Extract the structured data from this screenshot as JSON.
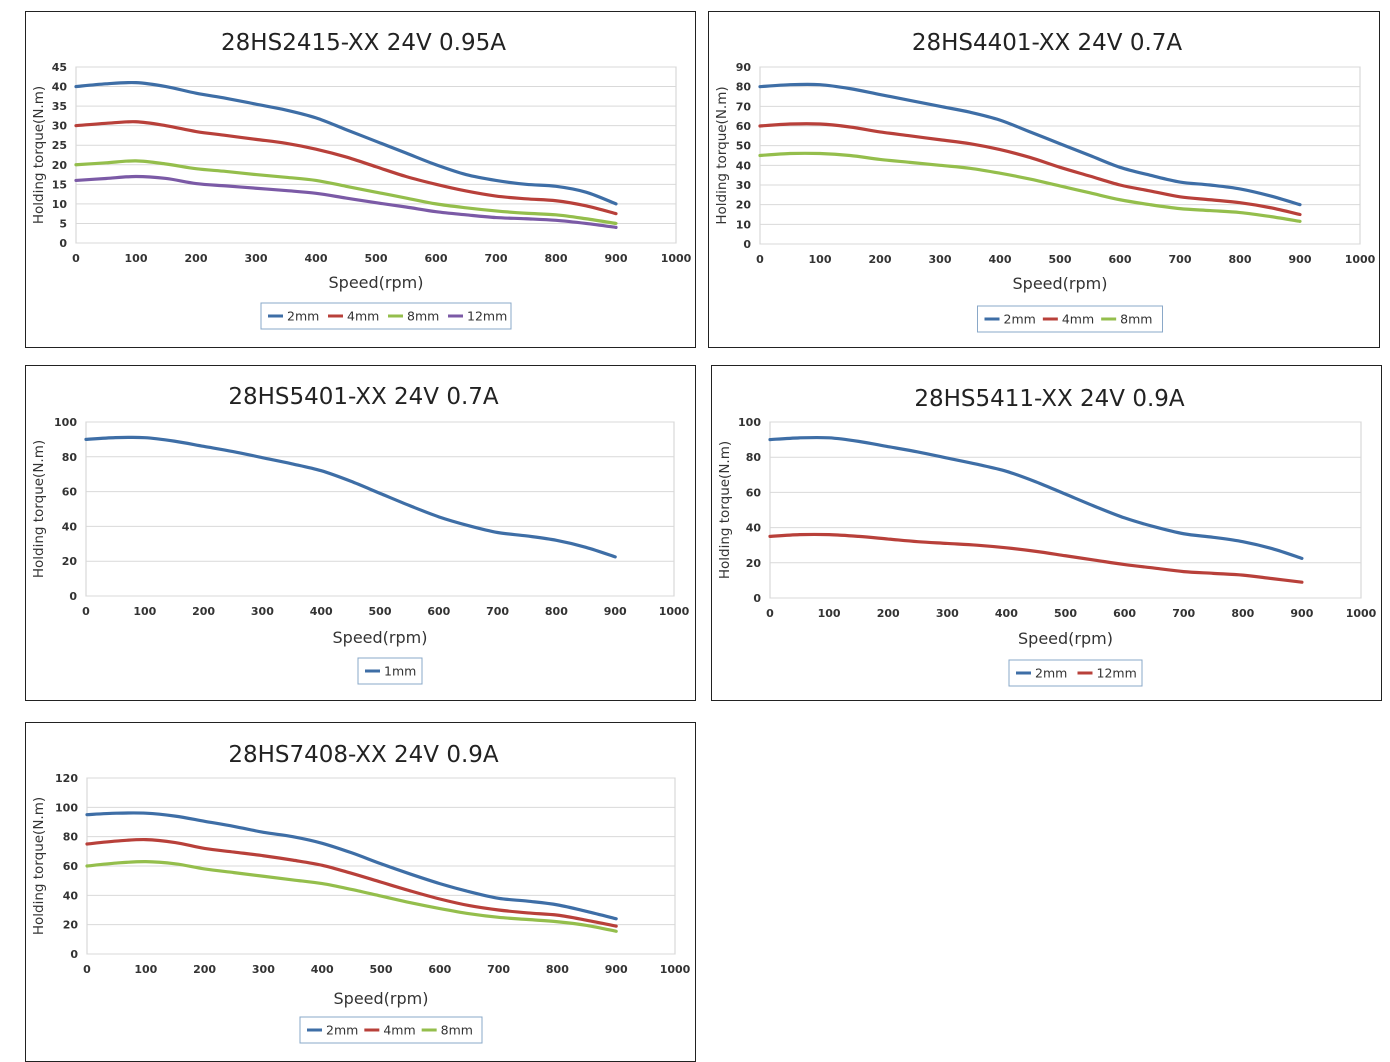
{
  "chart_data": [
    {
      "type": "line",
      "title": "28HS2415-XX  24V  0.95A",
      "xlabel": "Speed(rpm)",
      "ylabel": "Holding torque(N.m)",
      "xlim": [
        0,
        1000
      ],
      "ylim": [
        0,
        45
      ],
      "xticks": [
        0,
        100,
        200,
        300,
        400,
        500,
        600,
        700,
        800,
        900,
        1000
      ],
      "yticks": [
        0,
        5,
        10,
        15,
        20,
        25,
        30,
        35,
        40,
        45
      ],
      "grid": true,
      "legend": "bottom",
      "x": [
        0,
        50,
        100,
        150,
        200,
        250,
        300,
        350,
        400,
        450,
        500,
        550,
        600,
        650,
        700,
        750,
        800,
        850,
        900
      ],
      "series": [
        {
          "name": "2mm",
          "color": "#3e6ea6",
          "values": [
            40,
            40.7,
            41,
            40,
            38.3,
            37,
            35.5,
            34,
            32,
            29,
            26,
            23,
            20,
            17.5,
            16,
            15,
            14.5,
            13,
            10
          ]
        },
        {
          "name": "4mm",
          "color": "#b8403a",
          "values": [
            30,
            30.6,
            31,
            30,
            28.5,
            27.5,
            26.5,
            25.5,
            24,
            22,
            19.5,
            17,
            15,
            13.3,
            12,
            11.3,
            10.8,
            9.5,
            7.5
          ]
        },
        {
          "name": "8mm",
          "color": "#94be4c",
          "values": [
            20,
            20.5,
            21,
            20.2,
            19,
            18.3,
            17.5,
            16.8,
            16,
            14.5,
            13,
            11.5,
            10,
            9,
            8.2,
            7.6,
            7.2,
            6.2,
            5
          ]
        },
        {
          "name": "12mm",
          "color": "#7b5aa6",
          "values": [
            16,
            16.5,
            17,
            16.5,
            15.2,
            14.6,
            14,
            13.4,
            12.7,
            11.5,
            10.3,
            9.2,
            8,
            7.2,
            6.5,
            6.2,
            5.8,
            5,
            4
          ]
        }
      ]
    },
    {
      "type": "line",
      "title": "28HS4401-XX  24V  0.7A",
      "xlabel": "Speed(rpm)",
      "ylabel": "Holding torque(N.m)",
      "xlim": [
        0,
        1000
      ],
      "ylim": [
        0,
        90
      ],
      "xticks": [
        0,
        100,
        200,
        300,
        400,
        500,
        600,
        700,
        800,
        900,
        1000
      ],
      "yticks": [
        0,
        10,
        20,
        30,
        40,
        50,
        60,
        70,
        80,
        90
      ],
      "grid": true,
      "legend": "bottom",
      "x": [
        0,
        50,
        100,
        150,
        200,
        250,
        300,
        350,
        400,
        450,
        500,
        550,
        600,
        650,
        700,
        750,
        800,
        850,
        900
      ],
      "series": [
        {
          "name": "2mm",
          "color": "#3e6ea6",
          "values": [
            80,
            81,
            81,
            79,
            76,
            73,
            70,
            67,
            63,
            57,
            51,
            45,
            39,
            35,
            31.5,
            30,
            28,
            24.5,
            20
          ]
        },
        {
          "name": "4mm",
          "color": "#b8403a",
          "values": [
            60,
            61,
            61,
            59.5,
            57,
            55,
            53,
            51,
            48,
            44,
            39,
            34.5,
            30,
            27,
            24,
            22.5,
            21,
            18.5,
            15
          ]
        },
        {
          "name": "8mm",
          "color": "#94be4c",
          "values": [
            45,
            46,
            46,
            45,
            43,
            41.5,
            40,
            38.5,
            36,
            33,
            29.5,
            26,
            22.5,
            20,
            18,
            17,
            16,
            14,
            11.5
          ]
        }
      ]
    },
    {
      "type": "line",
      "title": "28HS5401-XX  24V  0.7A",
      "xlabel": "Speed(rpm)",
      "ylabel": "Holding torque(N.m)",
      "xlim": [
        0,
        1000
      ],
      "ylim": [
        0,
        100
      ],
      "xticks": [
        0,
        100,
        200,
        300,
        400,
        500,
        600,
        700,
        800,
        900,
        1000
      ],
      "yticks": [
        0,
        20,
        40,
        60,
        80,
        100
      ],
      "grid": true,
      "legend": "bottom",
      "x": [
        0,
        50,
        100,
        150,
        200,
        250,
        300,
        350,
        400,
        450,
        500,
        550,
        600,
        650,
        700,
        750,
        800,
        850,
        900
      ],
      "series": [
        {
          "name": "1mm",
          "color": "#3e6ea6",
          "values": [
            90,
            91,
            91,
            89,
            86,
            83,
            79.5,
            76,
            72,
            66,
            59,
            52,
            45.5,
            40.5,
            36.5,
            34.5,
            32,
            28,
            22.5
          ]
        }
      ]
    },
    {
      "type": "line",
      "title": "28HS5411-XX  24V  0.9A",
      "xlabel": "Speed(rpm)",
      "ylabel": "Holding torque(N.m)",
      "xlim": [
        0,
        1000
      ],
      "ylim": [
        0,
        100
      ],
      "xticks": [
        0,
        100,
        200,
        300,
        400,
        500,
        600,
        700,
        800,
        900,
        1000
      ],
      "yticks": [
        0,
        20,
        40,
        60,
        80,
        100
      ],
      "grid": true,
      "legend": "bottom",
      "x": [
        0,
        50,
        100,
        150,
        200,
        250,
        300,
        350,
        400,
        450,
        500,
        550,
        600,
        650,
        700,
        750,
        800,
        850,
        900
      ],
      "series": [
        {
          "name": "2mm",
          "color": "#3e6ea6",
          "values": [
            90,
            91,
            91,
            89,
            86,
            83,
            79.5,
            76,
            72,
            66,
            59,
            52,
            45.5,
            40.5,
            36.5,
            34.5,
            32,
            28,
            22.5
          ]
        },
        {
          "name": "12mm",
          "color": "#b8403a",
          "values": [
            35,
            36,
            36,
            35,
            33.5,
            32,
            31,
            30,
            28.5,
            26.5,
            24,
            21.5,
            19,
            17,
            15,
            14,
            13,
            11,
            9
          ]
        }
      ]
    },
    {
      "type": "line",
      "title": "28HS7408-XX  24V  0.9A",
      "xlabel": "Speed(rpm)",
      "ylabel": "Holding torque(N.m)",
      "xlim": [
        0,
        1000
      ],
      "ylim": [
        0,
        120
      ],
      "xticks": [
        0,
        100,
        200,
        300,
        400,
        500,
        600,
        700,
        800,
        900,
        1000
      ],
      "yticks": [
        0,
        20,
        40,
        60,
        80,
        100,
        120
      ],
      "grid": true,
      "legend": "bottom",
      "x": [
        0,
        50,
        100,
        150,
        200,
        250,
        300,
        350,
        400,
        450,
        500,
        550,
        600,
        650,
        700,
        750,
        800,
        850,
        900
      ],
      "series": [
        {
          "name": "2mm",
          "color": "#3e6ea6",
          "values": [
            95,
            96,
            96,
            94,
            90.5,
            87,
            83,
            80,
            75.5,
            69,
            61.5,
            54.5,
            48,
            42.5,
            38,
            36,
            33.5,
            29,
            24
          ]
        },
        {
          "name": "4mm",
          "color": "#b8403a",
          "values": [
            75,
            77,
            78,
            76,
            72,
            69.5,
            67,
            64,
            60.5,
            55,
            49,
            43,
            37.5,
            33,
            30,
            28,
            26.5,
            23,
            19
          ]
        },
        {
          "name": "8mm",
          "color": "#94be4c",
          "values": [
            60,
            62,
            63,
            61.5,
            58,
            55.5,
            53,
            50.5,
            48,
            44,
            39.5,
            35,
            31,
            27.5,
            25,
            23.5,
            22,
            19.5,
            15.5
          ]
        }
      ]
    }
  ]
}
